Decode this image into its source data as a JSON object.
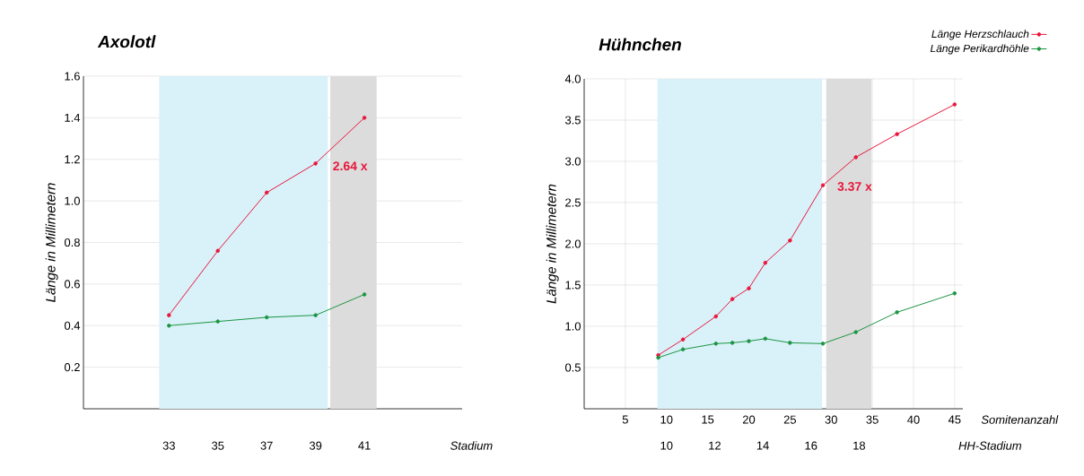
{
  "chart_data": [
    {
      "type": "line",
      "title": "Axolotl",
      "xlabel": "Stadium",
      "ylabel": "Länge in Millimetern",
      "x": [
        33,
        35,
        37,
        39,
        41
      ],
      "xlim": [
        29.5,
        45
      ],
      "xticks": [
        33,
        35,
        37,
        39,
        41
      ],
      "ylim": [
        0,
        1.6
      ],
      "yticks": [
        0.2,
        0.4,
        0.6,
        0.8,
        {
          "value": 1,
          "label": "1.0"
        },
        1.2,
        1.4,
        1.6
      ],
      "grid": true,
      "marker": "circle",
      "series": [
        {
          "color": "#e8173c",
          "values": [
            0.45,
            0.76,
            1.04,
            1.18,
            1.4
          ]
        },
        {
          "color": "#1a9641",
          "values": [
            0.4,
            0.42,
            0.44,
            0.45,
            0.55
          ]
        }
      ],
      "bands": [
        {
          "axis": "x",
          "from": 32.6,
          "to": 39.5,
          "color": "#d9f1f9"
        },
        {
          "axis": "x",
          "from": 39.6,
          "to": 41.5,
          "color": "#dcdcdc"
        }
      ],
      "annotations": [
        "2.64 x"
      ]
    },
    {
      "type": "line",
      "title": "Hühnchen",
      "xlabel": "Somitenanzahl",
      "ylabel": "Länge in Millimetern",
      "x2label": "HH-Stadium",
      "x": [
        9,
        12,
        16,
        18,
        20,
        22,
        25,
        29,
        33,
        38,
        45
      ],
      "xlim": [
        0,
        46
      ],
      "xticks": [
        5,
        10,
        15,
        20,
        25,
        30,
        35,
        40,
        45
      ],
      "x2lim": [
        6.58,
        22.31
      ],
      "x2ticks": [
        10,
        12,
        14,
        16,
        18
      ],
      "ylim": [
        0,
        4.0
      ],
      "yticks": [
        0.5,
        {
          "value": 1,
          "label": "1.0"
        },
        1.5,
        {
          "value": 2,
          "label": "2.0"
        },
        2.5,
        {
          "value": 3,
          "label": "3.0"
        },
        3.5,
        {
          "value": 4,
          "label": "4.0"
        }
      ],
      "grid": true,
      "marker": "circle",
      "legend": "top right",
      "series": [
        {
          "name": "Länge Herzschlauch",
          "color": "#e8173c",
          "values": [
            0.65,
            0.84,
            1.12,
            1.33,
            1.46,
            1.77,
            2.04,
            2.71,
            3.05,
            3.33,
            3.69
          ]
        },
        {
          "name": "Länge Perikardhöhle",
          "color": "#1a9641",
          "values": [
            0.62,
            0.72,
            0.79,
            0.8,
            0.82,
            0.85,
            0.8,
            0.79,
            0.93,
            1.17,
            1.4
          ]
        }
      ],
      "bands": [
        {
          "axis": "x",
          "from": 8.9,
          "to": 28.9,
          "color": "#d9f1f9"
        },
        {
          "axis": "x",
          "from": 29.4,
          "to": 34.9,
          "color": "#dcdcdc"
        }
      ],
      "annotations": [
        "3.37 x"
      ]
    }
  ]
}
